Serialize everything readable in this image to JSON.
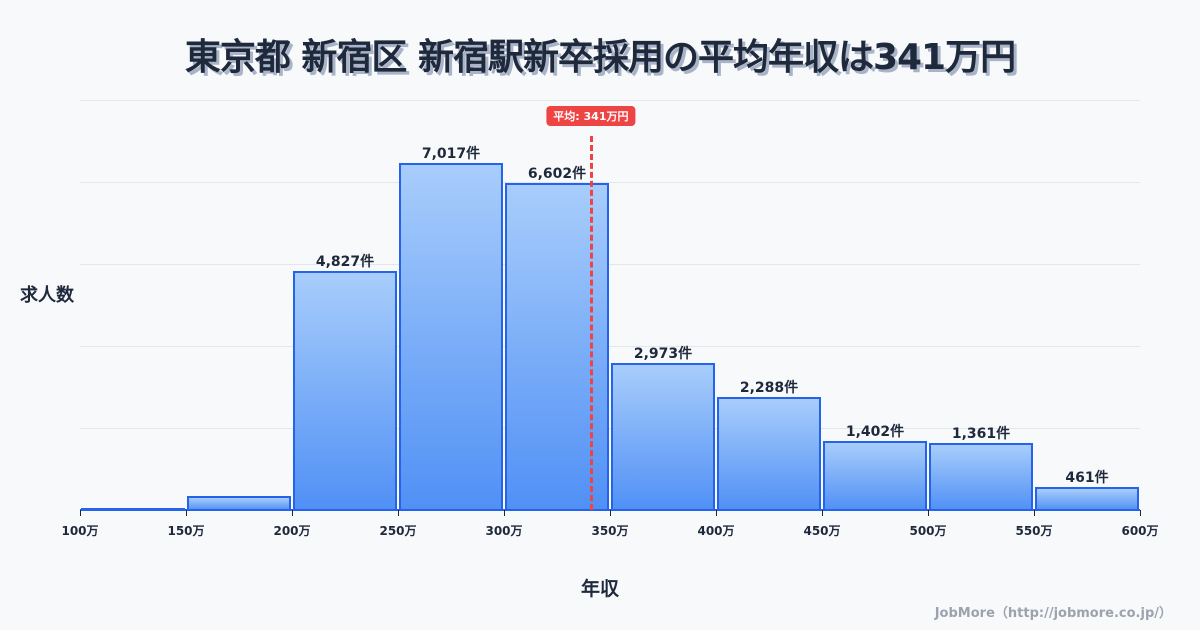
{
  "title": "東京都 新宿区 新宿駅新卒採用の平均年収は341万円",
  "y_axis_label": "求人数",
  "x_axis_label": "年収",
  "credit": "JobMore（http://jobmore.co.jp/）",
  "average": {
    "label": "平均: 341万円",
    "value": 341
  },
  "colors": {
    "bar_border": "#2563eb",
    "bar_top": "#a8cdfb",
    "bar_bottom": "#5090f5",
    "average_line": "#ef4444",
    "title": "#1e293b"
  },
  "chart_data": {
    "type": "bar",
    "title": "東京都 新宿区 新宿駅新卒採用の平均年収は341万円",
    "xlabel": "年収",
    "ylabel": "求人数",
    "categories": [
      "100-150万",
      "150-200万",
      "200-250万",
      "250-300万",
      "300-350万",
      "350-400万",
      "400-450万",
      "450-500万",
      "500-550万",
      "550-600万"
    ],
    "values": [
      20,
      283,
      4827,
      7017,
      6602,
      2973,
      2288,
      1402,
      1361,
      461
    ],
    "labels": [
      "",
      "",
      "4,827件",
      "7,017件",
      "6,602件",
      "2,973件",
      "2,288件",
      "1,402件",
      "1,361件",
      "461件"
    ],
    "x_ticks": [
      "100万",
      "150万",
      "200万",
      "250万",
      "300万",
      "350万",
      "400万",
      "450万",
      "500万",
      "550万",
      "600万"
    ],
    "xlim": [
      100,
      600
    ],
    "ylim": [
      0,
      8280
    ],
    "grid": true,
    "annotations": [
      {
        "type": "vline",
        "x": 341,
        "label": "平均: 341万円"
      }
    ]
  }
}
